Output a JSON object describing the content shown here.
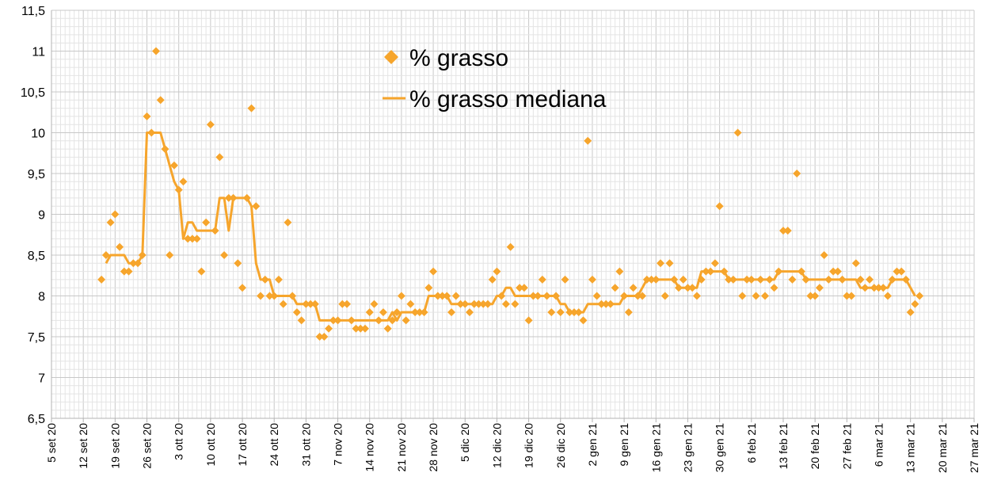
{
  "chart_data": {
    "type": "line",
    "title": "",
    "xlabel": "",
    "ylabel": "",
    "ylim": [
      6.5,
      11.5
    ],
    "yticks": [
      6.5,
      7,
      7.5,
      8,
      8.5,
      9,
      9.5,
      10,
      10.5,
      11,
      11.5
    ],
    "ytick_labels": [
      "6,5",
      "7",
      "7,5",
      "8",
      "8,5",
      "9",
      "9,5",
      "10",
      "10,5",
      "11",
      "11,5"
    ],
    "x_start": "2020-09-05",
    "x_end": "2021-03-27",
    "x_minor_interval_days": 1,
    "xtick_labels": [
      "5 set 20",
      "12 set 20",
      "19 set 20",
      "26 set 20",
      "3 ott 20",
      "10 ott 20",
      "17 ott 20",
      "24 ott 20",
      "31 ott 20",
      "7 nov 20",
      "14 nov 20",
      "21 nov 20",
      "28 nov 20",
      "5 dic 20",
      "12 dic 20",
      "19 dic 20",
      "26 dic 20",
      "2 gen 21",
      "9 gen 21",
      "16 gen 21",
      "23 gen 21",
      "30 gen 21",
      "6 feb 21",
      "13 feb 21",
      "20 feb 21",
      "27 feb 21",
      "6 mar 21",
      "13 mar 21",
      "20 mar 21",
      "27 mar 21"
    ],
    "grid": true,
    "legend_position": "top-center",
    "series": [
      {
        "name": "% grasso",
        "kind": "scatter",
        "marker": "diamond",
        "color": "#f6a52c",
        "points": [
          [
            "2020-09-16",
            8.2
          ],
          [
            "2020-09-17",
            8.5
          ],
          [
            "2020-09-18",
            8.9
          ],
          [
            "2020-09-19",
            9.0
          ],
          [
            "2020-09-20",
            8.6
          ],
          [
            "2020-09-21",
            8.3
          ],
          [
            "2020-09-22",
            8.3
          ],
          [
            "2020-09-23",
            8.4
          ],
          [
            "2020-09-24",
            8.4
          ],
          [
            "2020-09-25",
            8.5
          ],
          [
            "2020-09-26",
            10.2
          ],
          [
            "2020-09-27",
            10.0
          ],
          [
            "2020-09-28",
            11.0
          ],
          [
            "2020-09-29",
            10.4
          ],
          [
            "2020-09-30",
            9.8
          ],
          [
            "2020-10-01",
            8.5
          ],
          [
            "2020-10-02",
            9.6
          ],
          [
            "2020-10-03",
            9.3
          ],
          [
            "2020-10-04",
            9.4
          ],
          [
            "2020-10-05",
            8.7
          ],
          [
            "2020-10-06",
            8.7
          ],
          [
            "2020-10-07",
            8.7
          ],
          [
            "2020-10-08",
            8.3
          ],
          [
            "2020-10-09",
            8.9
          ],
          [
            "2020-10-10",
            10.1
          ],
          [
            "2020-10-11",
            8.8
          ],
          [
            "2020-10-12",
            9.7
          ],
          [
            "2020-10-13",
            8.5
          ],
          [
            "2020-10-14",
            9.2
          ],
          [
            "2020-10-15",
            9.2
          ],
          [
            "2020-10-16",
            8.4
          ],
          [
            "2020-10-17",
            8.1
          ],
          [
            "2020-10-18",
            9.2
          ],
          [
            "2020-10-19",
            10.3
          ],
          [
            "2020-10-20",
            9.1
          ],
          [
            "2020-10-21",
            8.0
          ],
          [
            "2020-10-22",
            8.2
          ],
          [
            "2020-10-23",
            8.0
          ],
          [
            "2020-10-24",
            8.0
          ],
          [
            "2020-10-25",
            8.2
          ],
          [
            "2020-10-26",
            7.9
          ],
          [
            "2020-10-27",
            8.9
          ],
          [
            "2020-10-28",
            8.0
          ],
          [
            "2020-10-29",
            7.8
          ],
          [
            "2020-10-30",
            7.7
          ],
          [
            "2020-10-31",
            7.9
          ],
          [
            "2020-11-01",
            7.9
          ],
          [
            "2020-11-02",
            7.9
          ],
          [
            "2020-11-03",
            7.5
          ],
          [
            "2020-11-04",
            7.5
          ],
          [
            "2020-11-05",
            7.6
          ],
          [
            "2020-11-06",
            7.7
          ],
          [
            "2020-11-07",
            7.7
          ],
          [
            "2020-11-08",
            7.9
          ],
          [
            "2020-11-09",
            7.9
          ],
          [
            "2020-11-10",
            7.7
          ],
          [
            "2020-11-11",
            7.6
          ],
          [
            "2020-11-12",
            7.6
          ],
          [
            "2020-11-13",
            7.6
          ],
          [
            "2020-11-14",
            7.8
          ],
          [
            "2020-11-15",
            7.9
          ],
          [
            "2020-11-16",
            7.7
          ],
          [
            "2020-11-17",
            7.8
          ],
          [
            "2020-11-18",
            7.6
          ],
          [
            "2020-11-19",
            7.7
          ],
          [
            "2020-11-20",
            7.8
          ],
          [
            "2020-11-21",
            8.0
          ],
          [
            "2020-11-22",
            7.7
          ],
          [
            "2020-11-23",
            7.9
          ],
          [
            "2020-11-24",
            7.8
          ],
          [
            "2020-11-25",
            7.8
          ],
          [
            "2020-11-26",
            7.8
          ],
          [
            "2020-11-27",
            8.1
          ],
          [
            "2020-11-28",
            8.3
          ],
          [
            "2020-11-29",
            8.0
          ],
          [
            "2020-11-30",
            8.0
          ],
          [
            "2020-12-01",
            8.0
          ],
          [
            "2020-12-02",
            7.8
          ],
          [
            "2020-12-03",
            8.0
          ],
          [
            "2020-12-04",
            7.9
          ],
          [
            "2020-12-05",
            7.9
          ],
          [
            "2020-12-06",
            7.8
          ],
          [
            "2020-12-07",
            7.9
          ],
          [
            "2020-12-08",
            7.9
          ],
          [
            "2020-12-09",
            7.9
          ],
          [
            "2020-12-10",
            7.9
          ],
          [
            "2020-12-11",
            8.2
          ],
          [
            "2020-12-12",
            8.3
          ],
          [
            "2020-12-13",
            8.0
          ],
          [
            "2020-12-14",
            7.9
          ],
          [
            "2020-12-15",
            8.6
          ],
          [
            "2020-12-16",
            7.9
          ],
          [
            "2020-12-17",
            8.1
          ],
          [
            "2020-12-18",
            8.1
          ],
          [
            "2020-12-19",
            7.7
          ],
          [
            "2020-12-20",
            8.0
          ],
          [
            "2020-12-21",
            8.0
          ],
          [
            "2020-12-22",
            8.2
          ],
          [
            "2020-12-23",
            8.0
          ],
          [
            "2020-12-24",
            7.8
          ],
          [
            "2020-12-25",
            8.0
          ],
          [
            "2020-12-26",
            7.8
          ],
          [
            "2020-12-27",
            8.2
          ],
          [
            "2020-12-28",
            7.8
          ],
          [
            "2020-12-29",
            7.8
          ],
          [
            "2020-12-30",
            7.8
          ],
          [
            "2020-12-31",
            7.7
          ],
          [
            "2021-01-01",
            9.9
          ],
          [
            "2021-01-02",
            8.2
          ],
          [
            "2021-01-03",
            8.0
          ],
          [
            "2021-01-04",
            7.9
          ],
          [
            "2021-01-05",
            7.9
          ],
          [
            "2021-01-06",
            7.9
          ],
          [
            "2021-01-07",
            8.1
          ],
          [
            "2021-01-08",
            8.3
          ],
          [
            "2021-01-09",
            8.0
          ],
          [
            "2021-01-10",
            7.8
          ],
          [
            "2021-01-11",
            8.1
          ],
          [
            "2021-01-12",
            8.0
          ],
          [
            "2021-01-13",
            8.0
          ],
          [
            "2021-01-14",
            8.2
          ],
          [
            "2021-01-15",
            8.2
          ],
          [
            "2021-01-16",
            8.2
          ],
          [
            "2021-01-17",
            8.4
          ],
          [
            "2021-01-18",
            8.0
          ],
          [
            "2021-01-19",
            8.4
          ],
          [
            "2021-01-20",
            8.2
          ],
          [
            "2021-01-21",
            8.1
          ],
          [
            "2021-01-22",
            8.2
          ],
          [
            "2021-01-23",
            8.1
          ],
          [
            "2021-01-24",
            8.1
          ],
          [
            "2021-01-25",
            8.0
          ],
          [
            "2021-01-26",
            8.2
          ],
          [
            "2021-01-27",
            8.3
          ],
          [
            "2021-01-28",
            8.3
          ],
          [
            "2021-01-29",
            8.4
          ],
          [
            "2021-01-30",
            9.1
          ],
          [
            "2021-01-31",
            8.3
          ],
          [
            "2021-02-01",
            8.2
          ],
          [
            "2021-02-02",
            8.2
          ],
          [
            "2021-02-03",
            10.0
          ],
          [
            "2021-02-04",
            8.0
          ],
          [
            "2021-02-05",
            8.2
          ],
          [
            "2021-02-06",
            8.2
          ],
          [
            "2021-02-07",
            8.0
          ],
          [
            "2021-02-08",
            8.2
          ],
          [
            "2021-02-09",
            8.0
          ],
          [
            "2021-02-10",
            8.2
          ],
          [
            "2021-02-11",
            8.1
          ],
          [
            "2021-02-12",
            8.3
          ],
          [
            "2021-02-13",
            8.8
          ],
          [
            "2021-02-14",
            8.8
          ],
          [
            "2021-02-15",
            8.2
          ],
          [
            "2021-02-16",
            9.5
          ],
          [
            "2021-02-17",
            8.3
          ],
          [
            "2021-02-18",
            8.2
          ],
          [
            "2021-02-19",
            8.0
          ],
          [
            "2021-02-20",
            8.0
          ],
          [
            "2021-02-21",
            8.1
          ],
          [
            "2021-02-22",
            8.5
          ],
          [
            "2021-02-23",
            8.2
          ],
          [
            "2021-02-24",
            8.3
          ],
          [
            "2021-02-25",
            8.3
          ],
          [
            "2021-02-26",
            8.2
          ],
          [
            "2021-02-27",
            8.0
          ],
          [
            "2021-02-28",
            8.0
          ],
          [
            "2021-03-01",
            8.4
          ],
          [
            "2021-03-02",
            8.2
          ],
          [
            "2021-03-03",
            8.1
          ],
          [
            "2021-03-04",
            8.2
          ],
          [
            "2021-03-05",
            8.1
          ],
          [
            "2021-03-06",
            8.1
          ],
          [
            "2021-03-07",
            8.1
          ],
          [
            "2021-03-08",
            8.0
          ],
          [
            "2021-03-09",
            8.2
          ],
          [
            "2021-03-10",
            8.3
          ],
          [
            "2021-03-11",
            8.3
          ],
          [
            "2021-03-12",
            8.2
          ],
          [
            "2021-03-13",
            7.8
          ],
          [
            "2021-03-14",
            7.9
          ],
          [
            "2021-03-15",
            8.0
          ]
        ]
      },
      {
        "name": "% grasso mediana",
        "kind": "line",
        "color": "#f6a52c",
        "points": [
          [
            "2020-09-17",
            8.4
          ],
          [
            "2020-09-18",
            8.5
          ],
          [
            "2020-09-21",
            8.5
          ],
          [
            "2020-09-22",
            8.4
          ],
          [
            "2020-09-24",
            8.4
          ],
          [
            "2020-09-25",
            8.5
          ],
          [
            "2020-09-26",
            10.0
          ],
          [
            "2020-09-29",
            10.0
          ],
          [
            "2020-09-30",
            9.8
          ],
          [
            "2020-10-01",
            9.6
          ],
          [
            "2020-10-02",
            9.4
          ],
          [
            "2020-10-03",
            9.3
          ],
          [
            "2020-10-04",
            8.7
          ],
          [
            "2020-10-05",
            8.9
          ],
          [
            "2020-10-06",
            8.9
          ],
          [
            "2020-10-07",
            8.8
          ],
          [
            "2020-10-11",
            8.8
          ],
          [
            "2020-10-12",
            9.2
          ],
          [
            "2020-10-13",
            9.2
          ],
          [
            "2020-10-14",
            8.8
          ],
          [
            "2020-10-15",
            9.2
          ],
          [
            "2020-10-18",
            9.2
          ],
          [
            "2020-10-19",
            9.1
          ],
          [
            "2020-10-20",
            8.4
          ],
          [
            "2020-10-21",
            8.2
          ],
          [
            "2020-10-23",
            8.2
          ],
          [
            "2020-10-24",
            8.0
          ],
          [
            "2020-10-28",
            8.0
          ],
          [
            "2020-10-29",
            7.9
          ],
          [
            "2020-11-02",
            7.9
          ],
          [
            "2020-11-03",
            7.7
          ],
          [
            "2020-11-18",
            7.7
          ],
          [
            "2020-11-19",
            7.8
          ],
          [
            "2020-11-20",
            7.7
          ],
          [
            "2020-11-21",
            7.8
          ],
          [
            "2020-11-26",
            7.8
          ],
          [
            "2020-11-27",
            8.0
          ],
          [
            "2020-12-01",
            8.0
          ],
          [
            "2020-12-02",
            7.9
          ],
          [
            "2020-12-11",
            7.9
          ],
          [
            "2020-12-12",
            8.0
          ],
          [
            "2020-12-13",
            8.0
          ],
          [
            "2020-12-14",
            8.1
          ],
          [
            "2020-12-15",
            8.1
          ],
          [
            "2020-12-16",
            8.0
          ],
          [
            "2020-12-25",
            8.0
          ],
          [
            "2020-12-26",
            7.9
          ],
          [
            "2020-12-27",
            7.9
          ],
          [
            "2020-12-28",
            7.8
          ],
          [
            "2020-12-31",
            7.8
          ],
          [
            "2021-01-01",
            7.9
          ],
          [
            "2021-01-08",
            7.9
          ],
          [
            "2021-01-09",
            8.0
          ],
          [
            "2021-01-12",
            8.0
          ],
          [
            "2021-01-13",
            8.1
          ],
          [
            "2021-01-14",
            8.2
          ],
          [
            "2021-01-20",
            8.2
          ],
          [
            "2021-01-21",
            8.1
          ],
          [
            "2021-01-25",
            8.1
          ],
          [
            "2021-01-26",
            8.3
          ],
          [
            "2021-01-31",
            8.3
          ],
          [
            "2021-02-01",
            8.2
          ],
          [
            "2021-02-11",
            8.2
          ],
          [
            "2021-02-12",
            8.3
          ],
          [
            "2021-02-17",
            8.3
          ],
          [
            "2021-02-18",
            8.2
          ],
          [
            "2021-03-01",
            8.2
          ],
          [
            "2021-03-02",
            8.1
          ],
          [
            "2021-03-08",
            8.1
          ],
          [
            "2021-03-09",
            8.2
          ],
          [
            "2021-03-12",
            8.2
          ],
          [
            "2021-03-14",
            8.0
          ]
        ]
      }
    ]
  }
}
